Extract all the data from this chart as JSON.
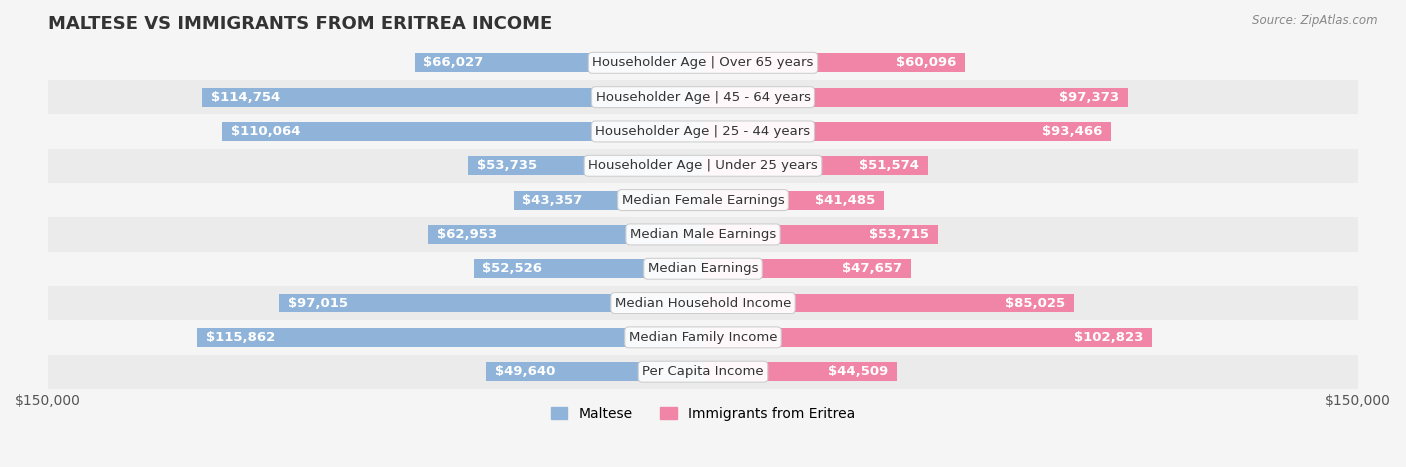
{
  "title": "MALTESE VS IMMIGRANTS FROM ERITREA INCOME",
  "source": "Source: ZipAtlas.com",
  "categories": [
    "Per Capita Income",
    "Median Family Income",
    "Median Household Income",
    "Median Earnings",
    "Median Male Earnings",
    "Median Female Earnings",
    "Householder Age | Under 25 years",
    "Householder Age | 25 - 44 years",
    "Householder Age | 45 - 64 years",
    "Householder Age | Over 65 years"
  ],
  "maltese_values": [
    49640,
    115862,
    97015,
    52526,
    62953,
    43357,
    53735,
    110064,
    114754,
    66027
  ],
  "eritrea_values": [
    44509,
    102823,
    85025,
    47657,
    53715,
    41485,
    51574,
    93466,
    97373,
    60096
  ],
  "maltese_labels": [
    "$49,640",
    "$115,862",
    "$97,015",
    "$52,526",
    "$62,953",
    "$43,357",
    "$53,735",
    "$110,064",
    "$114,754",
    "$66,027"
  ],
  "eritrea_labels": [
    "$44,509",
    "$102,823",
    "$85,025",
    "$47,657",
    "$53,715",
    "$41,485",
    "$51,574",
    "$93,466",
    "$97,373",
    "$60,096"
  ],
  "max_val": 150000,
  "bar_height": 0.55,
  "maltese_color": "#90b4d9",
  "eritrea_color": "#f085a8",
  "maltese_dark_color": "#5b8ec4",
  "eritrea_dark_color": "#e8527f",
  "bg_color": "#f5f5f5",
  "row_bg_even": "#ebebeb",
  "row_bg_odd": "#f5f5f5",
  "label_fontsize": 9.5,
  "category_fontsize": 9.5,
  "title_fontsize": 13
}
